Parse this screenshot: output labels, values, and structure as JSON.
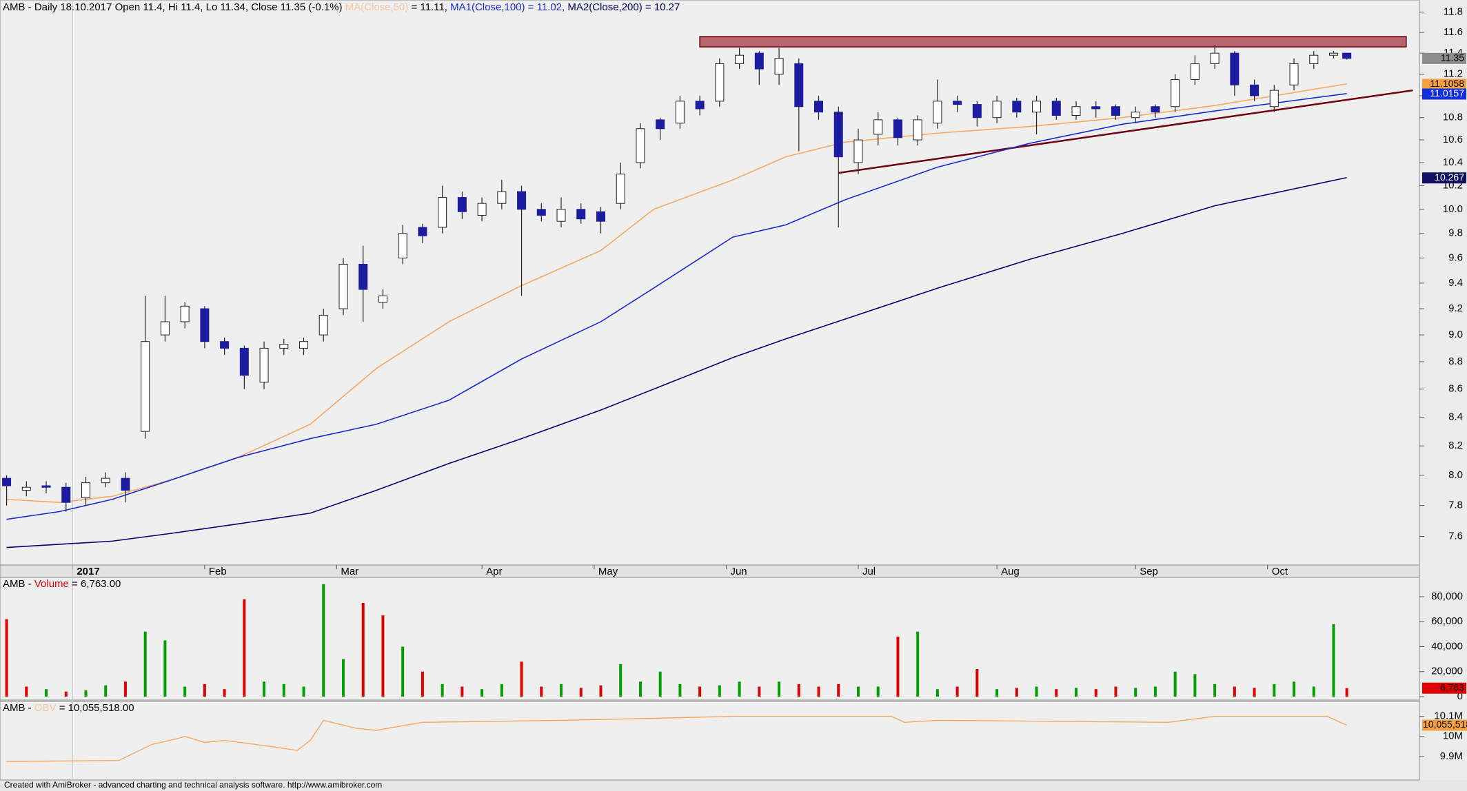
{
  "chart_data": {
    "type": "candlestick",
    "header": [
      {
        "text": "AMB - Daily 18.10.2017 Open 11.4, Hi 11.4, Lo 11.34, Close 11.35 (-0.1%) ",
        "color": "#000000"
      },
      {
        "text": "MA(Close,50)",
        "color": "#f2c9a0"
      },
      {
        "text": " = 11.11, ",
        "color": "#000000"
      },
      {
        "text": "MA1(Close,100) = 11.02, ",
        "color": "#1a2ad0"
      },
      {
        "text": "MA2(Close,200) = 10.27",
        "color": "#000060"
      }
    ],
    "x": [
      0,
      3,
      6,
      9,
      12,
      15,
      18,
      21,
      24,
      27,
      30,
      33,
      36,
      39,
      42,
      45,
      48,
      51,
      54,
      57,
      60,
      63,
      66,
      69,
      72,
      75,
      78,
      81,
      84,
      87,
      90,
      93,
      96,
      99,
      102,
      105,
      108,
      111,
      114,
      117,
      120,
      123,
      126,
      129,
      132,
      135,
      138,
      141,
      144,
      147,
      150,
      153,
      156,
      159,
      162,
      165,
      168,
      171,
      174,
      177,
      180,
      183,
      186,
      189,
      192,
      195,
      198,
      201,
      203
    ],
    "open": [
      7.98,
      7.9,
      7.93,
      7.92,
      7.85,
      7.95,
      7.98,
      8.3,
      9.0,
      9.1,
      9.2,
      8.95,
      8.9,
      8.65,
      8.9,
      8.9,
      9.0,
      9.2,
      9.55,
      9.25,
      9.6,
      9.85,
      9.85,
      10.1,
      9.95,
      10.05,
      10.15,
      10.0,
      9.9,
      10.0,
      9.98,
      10.05,
      10.4,
      10.78,
      10.75,
      10.95,
      10.95,
      11.3,
      11.4,
      11.2,
      11.3,
      10.95,
      10.85,
      10.4,
      10.65,
      10.78,
      10.6,
      10.75,
      10.95,
      10.92,
      10.8,
      10.95,
      10.85,
      10.95,
      10.82,
      10.9,
      10.9,
      10.8,
      10.9,
      10.9,
      11.15,
      11.3,
      11.4,
      11.1,
      10.9,
      11.1,
      11.3,
      11.38,
      11.4
    ],
    "high": [
      8.0,
      7.96,
      7.96,
      7.95,
      7.99,
      8.02,
      8.02,
      9.3,
      9.3,
      9.25,
      9.22,
      8.98,
      8.92,
      8.95,
      8.97,
      8.98,
      9.2,
      9.6,
      9.7,
      9.35,
      9.87,
      9.88,
      10.2,
      10.15,
      10.1,
      10.25,
      10.2,
      10.05,
      10.1,
      10.05,
      10.02,
      10.4,
      10.75,
      10.8,
      11.0,
      11.0,
      11.35,
      11.45,
      11.42,
      11.45,
      11.35,
      11.0,
      10.9,
      10.7,
      10.85,
      10.8,
      10.82,
      11.15,
      11.0,
      10.95,
      11.0,
      10.98,
      11.0,
      10.98,
      10.95,
      10.95,
      10.92,
      10.9,
      10.92,
      11.2,
      11.38,
      11.48,
      11.42,
      11.15,
      11.1,
      11.35,
      11.42,
      11.42,
      11.4
    ],
    "low": [
      7.8,
      7.86,
      7.88,
      7.76,
      7.8,
      7.92,
      7.82,
      8.25,
      8.95,
      9.05,
      8.9,
      8.85,
      8.6,
      8.6,
      8.85,
      8.85,
      8.95,
      9.15,
      9.1,
      9.2,
      9.55,
      9.72,
      9.8,
      9.92,
      9.9,
      10.0,
      9.3,
      9.9,
      9.85,
      9.88,
      9.8,
      10.0,
      10.35,
      10.6,
      10.7,
      10.82,
      10.9,
      11.25,
      11.1,
      11.1,
      10.5,
      10.78,
      9.85,
      10.3,
      10.55,
      10.55,
      10.55,
      10.7,
      10.85,
      10.72,
      10.75,
      10.8,
      10.65,
      10.78,
      10.78,
      10.8,
      10.78,
      10.75,
      10.8,
      10.85,
      11.1,
      11.25,
      11.0,
      10.95,
      10.85,
      11.05,
      11.25,
      11.35,
      11.34
    ],
    "close": [
      7.93,
      7.92,
      7.92,
      7.82,
      7.95,
      7.98,
      7.9,
      8.95,
      9.1,
      9.22,
      8.95,
      8.9,
      8.7,
      8.9,
      8.93,
      8.95,
      9.15,
      9.55,
      9.35,
      9.3,
      9.8,
      9.78,
      10.1,
      9.98,
      10.05,
      10.15,
      10.0,
      9.95,
      10.0,
      9.92,
      9.9,
      10.3,
      10.7,
      10.7,
      10.95,
      10.88,
      11.3,
      11.38,
      11.25,
      11.35,
      10.9,
      10.85,
      10.45,
      10.6,
      10.78,
      10.62,
      10.78,
      10.95,
      10.92,
      10.8,
      10.95,
      10.85,
      10.95,
      10.82,
      10.9,
      10.88,
      10.82,
      10.85,
      10.85,
      11.15,
      11.3,
      11.4,
      11.1,
      11.0,
      11.05,
      11.3,
      11.38,
      11.4,
      11.35
    ],
    "up_color": "#ffffff",
    "down_color": "#1c1ca0",
    "xlim": [
      -1,
      214
    ],
    "xticks": [
      {
        "value": 10,
        "label": "2017"
      },
      {
        "value": 30,
        "label": "Feb"
      },
      {
        "value": 50,
        "label": "Mar"
      },
      {
        "value": 72,
        "label": "Apr"
      },
      {
        "value": 89,
        "label": "May"
      },
      {
        "value": 109,
        "label": "Jun"
      },
      {
        "value": 129,
        "label": "Jul"
      },
      {
        "value": 150,
        "label": "Aug"
      },
      {
        "value": 171,
        "label": "Sep"
      },
      {
        "value": 191,
        "label": "Oct"
      }
    ],
    "ylim": [
      7.42,
      11.92
    ],
    "log": true,
    "yticks": [
      7.6,
      7.8,
      {
        "value": 8,
        "label": "8.0"
      },
      8.2,
      8.4,
      8.6,
      8.8,
      {
        "value": 9,
        "label": "9.0"
      },
      9.2,
      9.4,
      9.6,
      9.8,
      {
        "value": 10,
        "label": "10.0"
      },
      10.2,
      10.4,
      10.6,
      10.8,
      {
        "value": 11,
        "label": "11.0"
      },
      11.2,
      11.4,
      11.6,
      11.8
    ],
    "series": [
      {
        "color": "#f5a860",
        "x": [
          0,
          8,
          16,
          25,
          35,
          46,
          56,
          67,
          78,
          90,
          98,
          110,
          118,
          127,
          141,
          155,
          169,
          183,
          203
        ],
        "values": [
          7.84,
          7.82,
          7.86,
          7.97,
          8.12,
          8.35,
          8.75,
          9.1,
          9.38,
          9.66,
          10.0,
          10.25,
          10.45,
          10.58,
          10.66,
          10.72,
          10.8,
          10.91,
          11.11
        ]
      },
      {
        "color": "#1a2ad0",
        "x": [
          0,
          8,
          16,
          25,
          35,
          46,
          56,
          67,
          78,
          90,
          98,
          110,
          118,
          127,
          141,
          155,
          169,
          183,
          203
        ],
        "values": [
          7.71,
          7.76,
          7.84,
          7.97,
          8.12,
          8.25,
          8.35,
          8.52,
          8.82,
          9.1,
          9.36,
          9.77,
          9.87,
          10.08,
          10.36,
          10.57,
          10.74,
          10.86,
          11.02
        ]
      },
      {
        "color": "#000070",
        "x": [
          0,
          8,
          16,
          25,
          35,
          46,
          56,
          67,
          78,
          90,
          98,
          110,
          118,
          127,
          141,
          155,
          169,
          183,
          203
        ],
        "values": [
          7.53,
          7.55,
          7.57,
          7.62,
          7.68,
          7.75,
          7.9,
          8.08,
          8.25,
          8.45,
          8.6,
          8.83,
          8.97,
          9.12,
          9.36,
          9.59,
          9.8,
          10.03,
          10.27
        ]
      }
    ],
    "price_markers": {
      "values": [
        11.35,
        11.1058,
        11.0157,
        10.267
      ],
      "colors": [
        "#8c8c8c",
        "#f5a040",
        "#1030e0",
        "#101060"
      ],
      "text_colors": [
        "#000000",
        "#000000",
        "#ffffff",
        "#ffffff"
      ]
    },
    "zone": {
      "x": [
        105,
        212
      ],
      "y": [
        11.46,
        11.56
      ],
      "color": "#b8646c",
      "border": "#700010"
    },
    "trendline": {
      "x": [
        126,
        213
      ],
      "y": [
        10.31,
        11.05
      ],
      "color": "#700010"
    },
    "volume": {
      "header": [
        {
          "text": "AMB - ",
          "color": "#000000"
        },
        {
          "text": "Volume",
          "color": "#e00000"
        },
        {
          "text": " = 6,763.00",
          "color": "#000000"
        }
      ],
      "values": [
        62000,
        8000,
        6000,
        4000,
        5000,
        9000,
        12000,
        52000,
        45000,
        8000,
        10000,
        6000,
        78000,
        12000,
        10000,
        8000,
        90000,
        30000,
        75000,
        65000,
        40000,
        20000,
        10000,
        8000,
        6000,
        10000,
        28000,
        8000,
        10000,
        7000,
        9000,
        26000,
        12000,
        20000,
        10000,
        8000,
        9000,
        12000,
        8000,
        12000,
        10000,
        8000,
        10000,
        8000,
        8000,
        48000,
        52000,
        6000,
        8000,
        22000,
        6000,
        7000,
        8000,
        6000,
        7000,
        6000,
        8000,
        7000,
        8000,
        20000,
        18000,
        10000,
        8000,
        7000,
        10000,
        12000,
        8000,
        58000,
        6763
      ],
      "up_color": "#00a000",
      "down_color": "#e00000",
      "ylim": [
        -2760,
        95450
      ],
      "yticks": [
        0,
        {
          "value": 20000,
          "label": "20,000"
        },
        {
          "value": 40000,
          "label": "40,000"
        },
        {
          "value": 60000,
          "label": "60,000"
        },
        {
          "value": 80000,
          "label": "80,000"
        }
      ],
      "marker": {
        "value": 6763,
        "label": "6,763",
        "color": "#e00000"
      }
    },
    "obv": {
      "header": [
        {
          "text": "AMB - ",
          "color": "#000000"
        },
        {
          "text": "OBV",
          "color": "#f2c9a0"
        },
        {
          "text": " = 10,055,518.00",
          "color": "#000000"
        }
      ],
      "x": [
        0,
        17,
        22,
        26,
        27,
        30,
        33,
        40,
        44,
        46,
        48,
        53,
        56,
        63,
        84,
        98,
        110,
        134,
        136,
        141,
        176,
        183,
        200,
        203
      ],
      "values": [
        9875000,
        9880000,
        9960000,
        9990000,
        10000000,
        9970000,
        9980000,
        9950000,
        9930000,
        9980000,
        10080000,
        10040000,
        10030000,
        10070000,
        10080000,
        10090000,
        10100000,
        10100000,
        10070000,
        10080000,
        10070000,
        10100000,
        10100000,
        10055518
      ],
      "color": "#f5a860",
      "ylim": [
        9783000,
        10174000
      ],
      "yticks": [
        {
          "value": 9900000,
          "label": "9.9M"
        },
        {
          "value": 10000000,
          "label": "10M"
        },
        {
          "value": 10100000,
          "label": "10.1M"
        }
      ],
      "marker": {
        "value": 10055518,
        "label": "10,055,518",
        "color": "#f5a040"
      }
    },
    "footer": "Created with AmiBroker - advanced charting and technical analysis software. http://www.amibroker.com"
  }
}
